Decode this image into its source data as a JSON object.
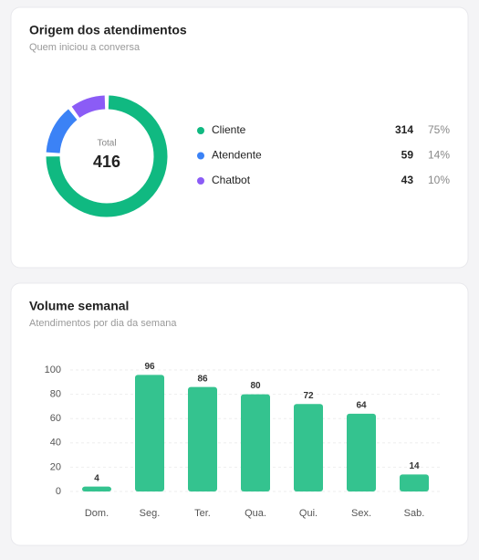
{
  "chart_data": [
    {
      "type": "donut",
      "title": "Origem dos atendimentos",
      "subtitle": "Quem iniciou a conversa",
      "center_label": "Total",
      "total": 416,
      "series": [
        {
          "name": "Cliente",
          "color": "#10b981",
          "value": 314,
          "share_label": "75%"
        },
        {
          "name": "Atendente",
          "color": "#3b82f6",
          "value": 59,
          "share_label": "14%"
        },
        {
          "name": "Chatbot",
          "color": "#8b5cf6",
          "value": 43,
          "share_label": "10%"
        }
      ]
    },
    {
      "type": "bar",
      "title": "Volume semanal",
      "subtitle": "Atendimentos por dia da semana",
      "categories": [
        "Dom.",
        "Seg.",
        "Ter.",
        "Qua.",
        "Qui.",
        "Sex.",
        "Sab."
      ],
      "values": [
        4,
        96,
        86,
        80,
        72,
        64,
        14
      ],
      "color": "#34c38f",
      "ylim": [
        0,
        100
      ],
      "yticks": [
        0,
        20,
        40,
        60,
        80,
        100
      ],
      "grid": true
    }
  ]
}
